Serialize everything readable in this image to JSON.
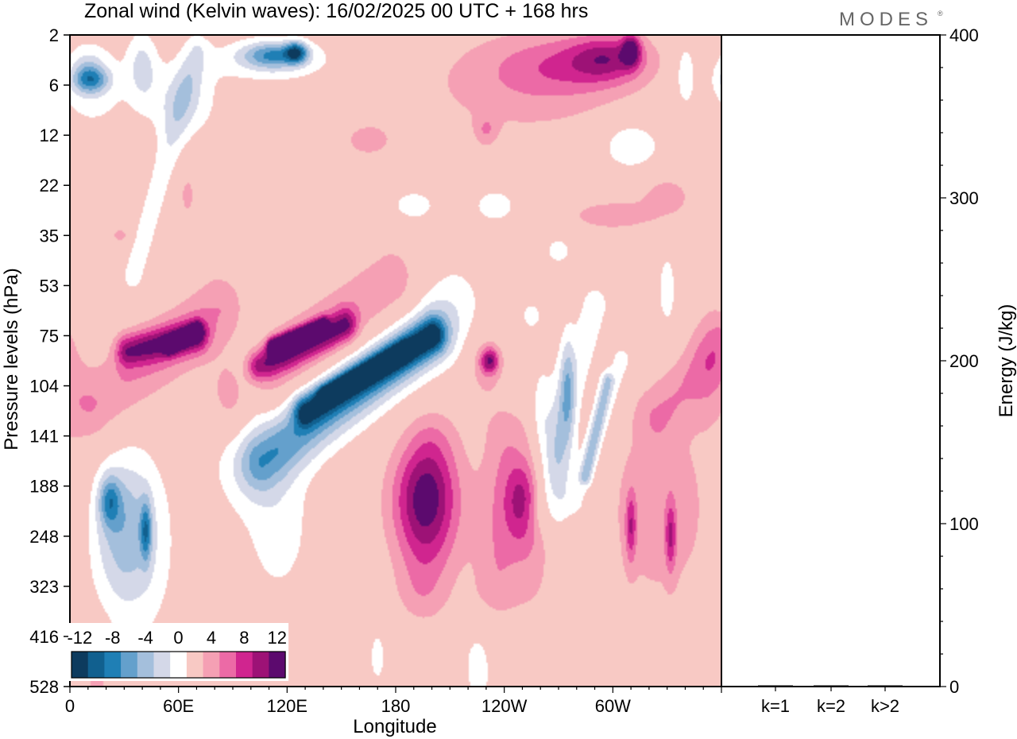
{
  "header": {
    "title": "Zonal wind (Kelvin waves):  16/02/2025  00 UTC  + 168 hrs",
    "brand": "MODES",
    "brand_mark": "®"
  },
  "chart_data": [
    {
      "type": "heatmap",
      "title": "Zonal wind (Kelvin waves):  16/02/2025  00 UTC  + 168 hrs",
      "xlabel": "Longitude",
      "ylabel": "Pressure levels (hPa)",
      "x_ticks": [
        "0",
        "60E",
        "120E",
        "180",
        "120W",
        "60W"
      ],
      "x_tick_degrees": [
        0,
        60,
        120,
        180,
        240,
        300
      ],
      "xlim": [
        0,
        360
      ],
      "y_ticks": [
        "2",
        "6",
        "12",
        "22",
        "35",
        "53",
        "75",
        "104",
        "141",
        "188",
        "248",
        "323",
        "416",
        "528"
      ],
      "y_scale": "levels",
      "grid": false,
      "colorbar": {
        "labels": [
          "-12",
          "-8",
          "-4",
          "0",
          "4",
          "8",
          "12"
        ],
        "levels": [
          -14,
          -12,
          -10,
          -8,
          -6,
          -4,
          -2,
          2,
          4,
          6,
          8,
          10,
          12,
          14
        ],
        "colors": [
          "#0d3b5e",
          "#11608f",
          "#1f7fb5",
          "#64a0cc",
          "#a4bfdc",
          "#d4d8e8",
          "#ffffff",
          "#f8c9c4",
          "#f5a0b4",
          "#ec6aa6",
          "#d0258f",
          "#9d1276",
          "#5c0a6e"
        ],
        "placement": "bottom-left"
      },
      "blobs": [
        {
          "lon": 62,
          "level": 1.3,
          "rx": 20,
          "ry": 0.8,
          "val": -4
        },
        {
          "lon": 40,
          "level": 0.6,
          "rx": 8,
          "ry": 0.7,
          "val": -4
        },
        {
          "lon": 10,
          "level": 0.75,
          "rx": 9,
          "ry": 0.4,
          "val": -4
        },
        {
          "lon": 12,
          "level": 1.0,
          "rx": 22,
          "ry": 1.0,
          "val": -3
        },
        {
          "lon": 12,
          "level": 0.9,
          "rx": 10,
          "ry": 0.25,
          "val": -6
        },
        {
          "lon": 112,
          "level": 0.5,
          "rx": 34,
          "ry": 0.45,
          "val": -4
        },
        {
          "lon": 112,
          "level": 0.4,
          "rx": 16,
          "ry": 0.25,
          "val": -7
        },
        {
          "lon": 125,
          "level": 0.35,
          "rx": 6,
          "ry": 0.2,
          "val": -10
        },
        {
          "lon": 340,
          "level": 0.8,
          "rx": 5,
          "ry": 0.6,
          "val": -4
        },
        {
          "lon": 310,
          "level": 2.2,
          "rx": 17,
          "ry": 0.5,
          "val": -4
        },
        {
          "lon": 190,
          "level": 3.4,
          "rx": 14,
          "ry": 0.35,
          "val": -3
        },
        {
          "lon": 235,
          "level": 3.4,
          "rx": 14,
          "ry": 0.4,
          "val": -3
        },
        {
          "lon": 270,
          "level": 4.3,
          "rx": 8,
          "ry": 0.3,
          "val": -3
        },
        {
          "lon": 330,
          "level": 5.1,
          "rx": 6,
          "ry": 0.9,
          "val": -3
        },
        {
          "lon": 255,
          "level": 5.6,
          "rx": 6,
          "ry": 0.3,
          "val": -3
        },
        {
          "lon": 230,
          "level": 1.9,
          "rx": 6,
          "ry": 0.3,
          "val": 3
        },
        {
          "lon": 165,
          "level": 2.1,
          "rx": 14,
          "ry": 0.35,
          "val": 3
        },
        {
          "lon": 250,
          "level": 1.0,
          "rx": 60,
          "ry": 1.1,
          "val": 3
        },
        {
          "lon": 276,
          "level": 0.6,
          "rx": 38,
          "ry": 0.6,
          "val": 4
        },
        {
          "lon": 298,
          "level": 0.45,
          "rx": 20,
          "ry": 0.45,
          "val": 6
        },
        {
          "lon": 310,
          "level": 0.3,
          "rx": 5,
          "ry": 0.3,
          "val": 9
        },
        {
          "lon": 330,
          "level": 3.2,
          "rx": 14,
          "ry": 0.4,
          "val": 3
        },
        {
          "lon": 300,
          "level": 3.6,
          "rx": 28,
          "ry": 0.35,
          "val": 3
        },
        {
          "lon": 65,
          "level": 3.2,
          "rx": 4,
          "ry": 0.4,
          "val": 3
        },
        {
          "lon": 28,
          "level": 4.0,
          "rx": 5,
          "ry": 0.15,
          "val": 3
        },
        {
          "lon": 15,
          "level": 12.8,
          "rx": 7,
          "ry": 0.9,
          "val": 3
        },
        {
          "lon": 170,
          "level": 12.4,
          "rx": 5,
          "ry": 0.6,
          "val": -3
        },
        {
          "lon": 200,
          "level": 9.6,
          "rx": 26,
          "ry": 1.6,
          "val": 3
        },
        {
          "lon": 195,
          "level": 9.2,
          "rx": 17,
          "ry": 1.0,
          "val": 6
        },
        {
          "lon": 255,
          "level": 10.0,
          "rx": 16,
          "ry": 1.8,
          "val": 3
        },
        {
          "lon": 250,
          "level": 9.3,
          "rx": 9,
          "ry": 0.8,
          "val": 6
        },
        {
          "lon": 230,
          "level": 6.6,
          "rx": 10,
          "ry": 0.7,
          "val": 3
        },
        {
          "lon": 232,
          "level": 6.5,
          "rx": 5,
          "ry": 0.25,
          "val": 8
        },
        {
          "lon": 326,
          "level": 9.5,
          "rx": 35,
          "ry": 2.2,
          "val": 3
        },
        {
          "lon": 310,
          "level": 9.8,
          "rx": 3,
          "ry": 0.7,
          "val": 6
        },
        {
          "lon": 332,
          "level": 10.0,
          "rx": 3,
          "ry": 0.7,
          "val": 6
        },
        {
          "lon": 355,
          "level": 6.6,
          "rx": 12,
          "ry": 1.2,
          "val": 3
        },
        {
          "lon": 270,
          "level": 8.5,
          "rx": 8,
          "ry": 1.8,
          "val": -4
        },
        {
          "lon": 260,
          "level": 7.5,
          "rx": 5,
          "ry": 0.9,
          "val": -3
        },
        {
          "lon": 275,
          "level": 7.0,
          "rx": 4,
          "ry": 1.0,
          "val": -5
        },
        {
          "lon": 225,
          "level": 12.6,
          "rx": 8,
          "ry": 0.8,
          "val": -3
        },
        {
          "lon": 250,
          "level": 13.6,
          "rx": 16,
          "ry": 1.0,
          "val": -3
        },
        {
          "lon": 35,
          "level": 10.4,
          "rx": 24,
          "ry": 2.1,
          "val": -3
        },
        {
          "lon": 30,
          "level": 9.8,
          "rx": 18,
          "ry": 1.4,
          "val": -5
        },
        {
          "lon": 22,
          "level": 9.3,
          "rx": 6,
          "ry": 0.5,
          "val": -7
        },
        {
          "lon": 42,
          "level": 9.9,
          "rx": 3,
          "ry": 0.6,
          "val": -7
        },
        {
          "lon": 115,
          "level": 9.8,
          "rx": 20,
          "ry": 1.6,
          "val": -3
        },
        {
          "lon": 100,
          "level": 6.9,
          "rx": 9,
          "ry": 1.0,
          "val": -3
        }
      ],
      "bands": [
        {
          "lon0": 14,
          "lev0": 7.4,
          "lon1": 82,
          "lev1": 5.5,
          "width": 1.25,
          "val": 4
        },
        {
          "lon0": 32,
          "lev0": 6.3,
          "lon1": 70,
          "lev1": 6.0,
          "width": 0.55,
          "val": 8
        },
        {
          "lon0": 55,
          "lev0": 6.2,
          "lon1": 70,
          "lev1": 5.9,
          "width": 0.25,
          "val": 11
        },
        {
          "lon0": 94,
          "lev0": 7.2,
          "lon1": 178,
          "lev1": 5.0,
          "width": 1.3,
          "val": 4
        },
        {
          "lon0": 104,
          "lev0": 6.6,
          "lon1": 152,
          "lev1": 5.8,
          "width": 0.55,
          "val": 8
        },
        {
          "lon0": 112,
          "lev0": 6.2,
          "lon1": 140,
          "lev1": 5.8,
          "width": 0.25,
          "val": 11
        },
        {
          "lon0": 96,
          "lev0": 8.6,
          "lon1": 212,
          "lev1": 5.4,
          "width": 1.6,
          "val": -3
        },
        {
          "lon0": 106,
          "lev0": 8.5,
          "lon1": 202,
          "lev1": 6.0,
          "width": 1.0,
          "val": -6
        },
        {
          "lon0": 130,
          "lev0": 7.5,
          "lon1": 200,
          "lev1": 6.0,
          "width": 0.55,
          "val": -10
        },
        {
          "lon0": 140,
          "lev0": 7.2,
          "lon1": 185,
          "lev1": 6.3,
          "width": 0.25,
          "val": -13
        },
        {
          "lon0": 260,
          "lev0": 9.5,
          "lon1": 290,
          "lev1": 5.4,
          "width": 0.8,
          "val": -3
        },
        {
          "lon0": 280,
          "lev0": 9.3,
          "lon1": 305,
          "lev1": 6.5,
          "width": 0.6,
          "val": -3
        },
        {
          "lon0": 285,
          "lev0": 8.8,
          "lon1": 297,
          "lev1": 6.9,
          "width": 0.3,
          "val": -5
        },
        {
          "lon0": 325,
          "lev0": 7.6,
          "lon1": 360,
          "lev1": 6.2,
          "width": 1.0,
          "val": 3
        },
        {
          "lon0": 195,
          "lev0": 11.0,
          "lon1": 200,
          "lev1": 8.2,
          "width": 1.2,
          "val": 3
        },
        {
          "lon0": 235,
          "lev0": 11.0,
          "lon1": 240,
          "lev1": 8.0,
          "width": 1.0,
          "val": 3
        },
        {
          "lon0": 35,
          "lev0": 4.8,
          "lon1": 70,
          "lev1": 0.3,
          "width": 0.6,
          "val": -3
        }
      ]
    },
    {
      "type": "bar",
      "categories": [
        "k=1",
        "k=2",
        "k>2"
      ],
      "values": [
        0.4,
        0.2,
        0.6
      ],
      "ylabel": "Energy (J/kg)",
      "ylim": [
        0,
        400
      ],
      "y_ticks": [
        0,
        100,
        200,
        300,
        400
      ]
    }
  ]
}
